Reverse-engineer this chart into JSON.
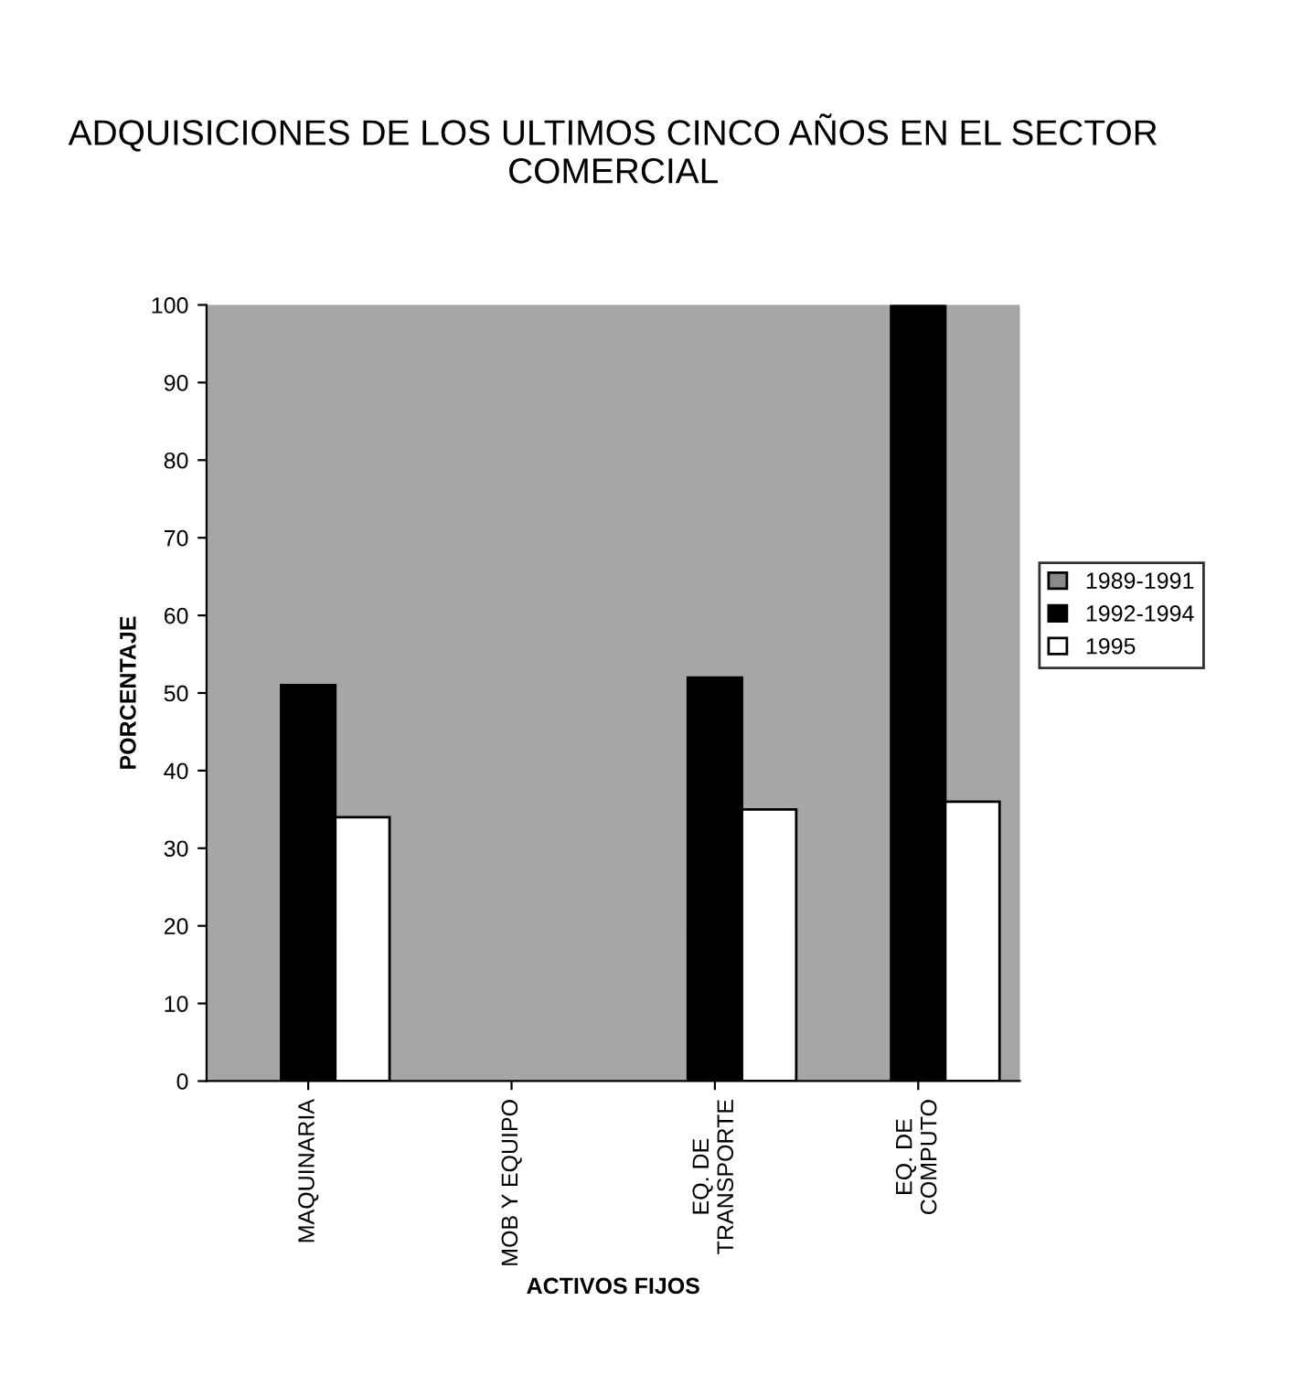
{
  "chart_data": {
    "type": "bar",
    "title": "ADQUISICIONES DE LOS ULTIMOS CINCO AÑOS EN EL SECTOR COMERCIAL",
    "xlabel": "ACTIVOS FIJOS",
    "ylabel": "PORCENTAJE",
    "categories": [
      "MAQUINARIA",
      "MOB Y EQUIPO",
      "EQ. DE\nTRANSPORTE",
      "EQ. DE\nCOMPUTO"
    ],
    "series": [
      {
        "name": "1989-1991",
        "color": "#8a8a8a",
        "values": [
          null,
          null,
          null,
          null
        ]
      },
      {
        "name": "1992-1994",
        "color": "#000000",
        "values": [
          51,
          null,
          52,
          100
        ]
      },
      {
        "name": "1995",
        "color": "#ffffff",
        "values": [
          34,
          null,
          35,
          36
        ]
      }
    ],
    "ylim": [
      0,
      100
    ],
    "yticks": [
      0,
      10,
      20,
      30,
      40,
      50,
      60,
      70,
      80,
      90,
      100
    ],
    "grid": false,
    "legend": "right"
  }
}
